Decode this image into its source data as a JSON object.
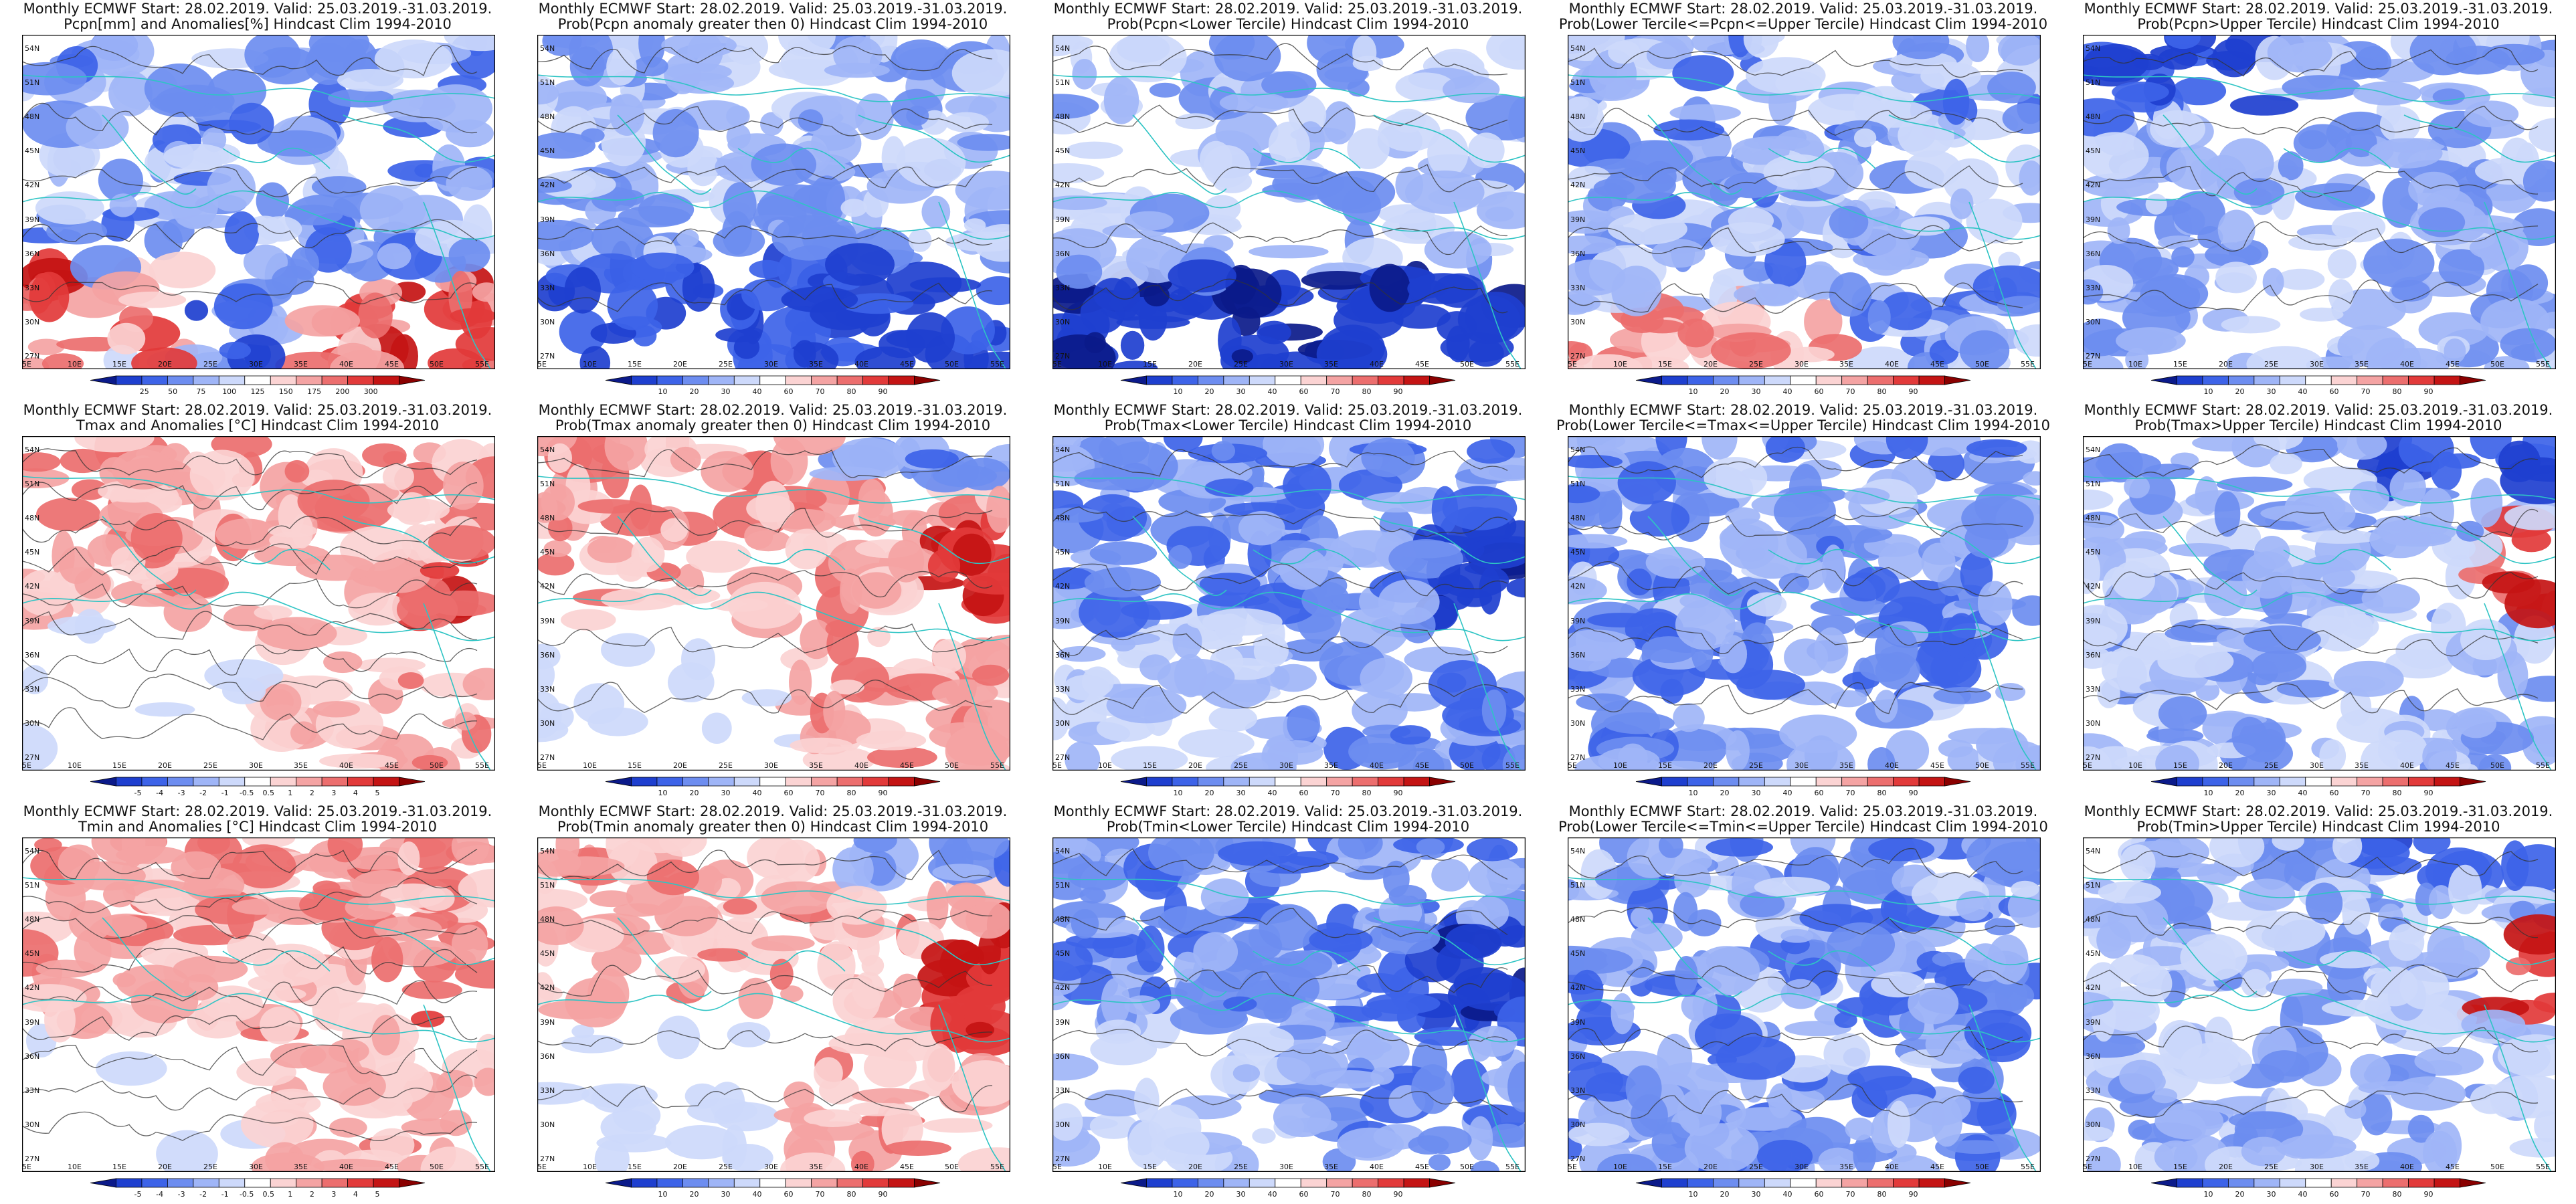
{
  "figure": {
    "header": "Monthly ECMWF Start: 28.02.2019. Valid: 25.03.2019.-31.03.2019.",
    "panels": [
      {
        "title": "Pcpn[mm] and Anomalies[%] Hindcast Clim 1994-2010",
        "scale": "anom",
        "cb_ticks": [
          "25",
          "50",
          "75",
          "100",
          "125",
          "150",
          "175",
          "200",
          "300"
        ],
        "pattern": "pcpn_anom"
      },
      {
        "title": "Prob(Pcpn anomaly greater then 0) Hindcast Clim 1994-2010",
        "scale": "prob",
        "cb_ticks": [
          "10",
          "20",
          "30",
          "40",
          "60",
          "70",
          "80",
          "90"
        ],
        "pattern": "pcpn_gt0"
      },
      {
        "title": "Prob(Pcpn<Lower Tercile) Hindcast Clim 1994-2010",
        "scale": "prob",
        "cb_ticks": [
          "10",
          "20",
          "30",
          "40",
          "60",
          "70",
          "80",
          "90"
        ],
        "pattern": "pcpn_low"
      },
      {
        "title": "Prob(Lower Tercile<=Pcpn<=Upper Tercile) Hindcast Clim 1994-2010",
        "scale": "prob",
        "cb_ticks": [
          "10",
          "20",
          "30",
          "40",
          "60",
          "70",
          "80",
          "90"
        ],
        "pattern": "pcpn_mid"
      },
      {
        "title": "Prob(Pcpn>Upper Tercile) Hindcast Clim 1994-2010",
        "scale": "prob",
        "cb_ticks": [
          "10",
          "20",
          "30",
          "40",
          "60",
          "70",
          "80",
          "90"
        ],
        "pattern": "pcpn_up"
      },
      {
        "title": "Tmax and Anomalies [°C] Hindcast Clim 1994-2010",
        "scale": "anom",
        "cb_ticks": [
          "-5",
          "-4",
          "-3",
          "-2",
          "-1",
          "-0.5",
          "0.5",
          "1",
          "2",
          "3",
          "4",
          "5"
        ],
        "pattern": "t_anom"
      },
      {
        "title": "Prob(Tmax anomaly greater then 0) Hindcast Clim 1994-2010",
        "scale": "prob",
        "cb_ticks": [
          "10",
          "20",
          "30",
          "40",
          "60",
          "70",
          "80",
          "90"
        ],
        "pattern": "t_gt0"
      },
      {
        "title": "Prob(Tmax<Lower Tercile) Hindcast Clim 1994-2010",
        "scale": "prob",
        "cb_ticks": [
          "10",
          "20",
          "30",
          "40",
          "60",
          "70",
          "80",
          "90"
        ],
        "pattern": "t_low"
      },
      {
        "title": "Prob(Lower Tercile<=Tmax<=Upper Tercile) Hindcast Clim 1994-2010",
        "scale": "prob",
        "cb_ticks": [
          "10",
          "20",
          "30",
          "40",
          "60",
          "70",
          "80",
          "90"
        ],
        "pattern": "t_mid"
      },
      {
        "title": "Prob(Tmax>Upper Tercile) Hindcast Clim 1994-2010",
        "scale": "prob",
        "cb_ticks": [
          "10",
          "20",
          "30",
          "40",
          "60",
          "70",
          "80",
          "90"
        ],
        "pattern": "t_up"
      },
      {
        "title": "Tmin and Anomalies [°C] Hindcast Clim 1994-2010",
        "scale": "anom",
        "cb_ticks": [
          "-5",
          "-4",
          "-3",
          "-2",
          "-1",
          "-0.5",
          "0.5",
          "1",
          "2",
          "3",
          "4",
          "5"
        ],
        "pattern": "t_anom"
      },
      {
        "title": "Prob(Tmin anomaly greater then 0) Hindcast Clim 1994-2010",
        "scale": "prob",
        "cb_ticks": [
          "10",
          "20",
          "30",
          "40",
          "60",
          "70",
          "80",
          "90"
        ],
        "pattern": "t_gt0"
      },
      {
        "title": "Prob(Tmin<Lower Tercile) Hindcast Clim 1994-2010",
        "scale": "prob",
        "cb_ticks": [
          "10",
          "20",
          "30",
          "40",
          "60",
          "70",
          "80",
          "90"
        ],
        "pattern": "t_low"
      },
      {
        "title": "Prob(Lower Tercile<=Tmin<=Upper Tercile) Hindcast Clim 1994-2010",
        "scale": "prob",
        "cb_ticks": [
          "10",
          "20",
          "30",
          "40",
          "60",
          "70",
          "80",
          "90"
        ],
        "pattern": "t_mid"
      },
      {
        "title": "Prob(Tmin>Upper Tercile) Hindcast Clim 1994-2010",
        "scale": "prob",
        "cb_ticks": [
          "10",
          "20",
          "30",
          "40",
          "60",
          "70",
          "80",
          "90"
        ],
        "pattern": "t_up"
      }
    ]
  },
  "map_axes": {
    "lon_labels": [
      "5E",
      "10E",
      "15E",
      "20E",
      "25E",
      "30E",
      "35E",
      "40E",
      "45E",
      "50E",
      "55E"
    ],
    "lat_labels": [
      "54N",
      "51N",
      "48N",
      "45N",
      "42N",
      "39N",
      "36N",
      "33N",
      "30N",
      "27N"
    ]
  },
  "colors": {
    "land_contour": "#2ec4c4",
    "isoline": "#333333",
    "cold": [
      "#0b1a8a",
      "#1e3fcf",
      "#3d63e8",
      "#6d8df0",
      "#9fb5f7",
      "#cdd9fb"
    ],
    "neutral": "#ffffff",
    "warm": [
      "#fbd3d3",
      "#f4a3a3",
      "#ec6e6e",
      "#e23a3a",
      "#c41414",
      "#8a0000"
    ]
  }
}
